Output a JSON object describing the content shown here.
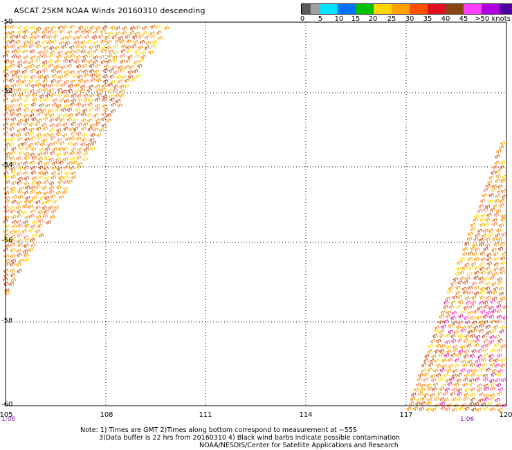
{
  "title": "ASCAT 25KM NOAA Winds 20160310 descending",
  "legend": {
    "labels": [
      "0",
      "5",
      "10",
      "15",
      "20",
      "25",
      "30",
      "35",
      "40",
      "45",
      ">50 knots"
    ],
    "colors": [
      "#5a5a5a",
      "#a0a0a0",
      "#00e0ff",
      "#0070ff",
      "#00c000",
      "#ffd700",
      "#ffa000",
      "#ff5000",
      "#e01020",
      "#8b4513",
      "#ff40ff",
      "#b000e0",
      "#5000a0"
    ]
  },
  "latitudes": [
    "-50",
    "-52",
    "-54",
    "-56",
    "-58",
    "-60"
  ],
  "longitudes": [
    "105",
    "108",
    "111",
    "114",
    "117",
    "120"
  ],
  "time_labels": {
    "left": "1:06",
    "right": "1:06"
  },
  "notes": [
    "Note: 1) Times are GMT 2)Times along bottom correspond to measurement at −55S",
    "3)Data buffer is 22 hrs from 20160310 4) Black wind barbs indicate possible contamination",
    "NOAA/NESDIS/Center for Satellite Applications and Research"
  ],
  "swath_colors": [
    "#ff8c00",
    "#d2691e",
    "#ffa500",
    "#e8a020",
    "#ffd700",
    "#ff7f50",
    "#c8501e"
  ],
  "swath_accent_colors": [
    "#ff40c0",
    "#e020a0"
  ]
}
